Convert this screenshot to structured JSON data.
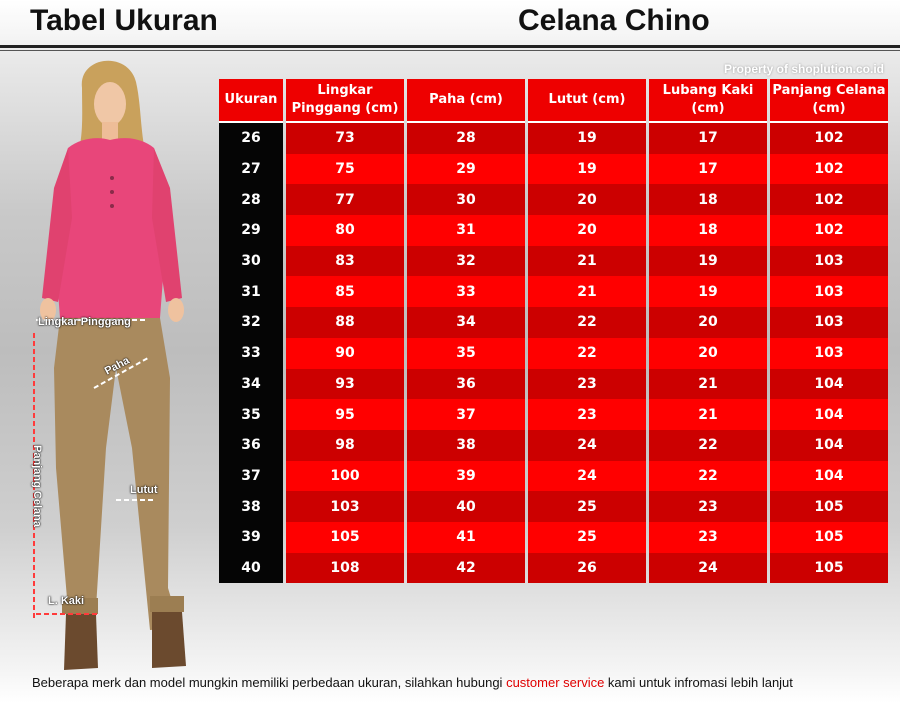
{
  "header": {
    "title_left": "Tabel Ukuran",
    "title_right": "Celana Chino",
    "property": "Property of shoplution.co.id"
  },
  "figure": {
    "labels": {
      "waist": "Lingkar Pinggang",
      "thigh": "Paha",
      "length": "Panjang Celana",
      "knee": "Lutut",
      "leg_opening": "L. Kaki"
    }
  },
  "table": {
    "headers": [
      "Ukuran",
      "Lingkar Pinggang (cm)",
      "Paha (cm)",
      "Lutut (cm)",
      "Lubang Kaki (cm)",
      "Panjang Celana (cm)"
    ],
    "rows": [
      [
        "26",
        "73",
        "28",
        "19",
        "17",
        "102"
      ],
      [
        "27",
        "75",
        "29",
        "19",
        "17",
        "102"
      ],
      [
        "28",
        "77",
        "30",
        "20",
        "18",
        "102"
      ],
      [
        "29",
        "80",
        "31",
        "20",
        "18",
        "102"
      ],
      [
        "30",
        "83",
        "32",
        "21",
        "19",
        "103"
      ],
      [
        "31",
        "85",
        "33",
        "21",
        "19",
        "103"
      ],
      [
        "32",
        "88",
        "34",
        "22",
        "20",
        "103"
      ],
      [
        "33",
        "90",
        "35",
        "22",
        "20",
        "103"
      ],
      [
        "34",
        "93",
        "36",
        "23",
        "21",
        "104"
      ],
      [
        "35",
        "95",
        "37",
        "23",
        "21",
        "104"
      ],
      [
        "36",
        "98",
        "38",
        "24",
        "22",
        "104"
      ],
      [
        "37",
        "100",
        "39",
        "24",
        "22",
        "104"
      ],
      [
        "38",
        "103",
        "40",
        "25",
        "23",
        "105"
      ],
      [
        "39",
        "105",
        "41",
        "25",
        "23",
        "105"
      ],
      [
        "40",
        "108",
        "42",
        "26",
        "24",
        "105"
      ]
    ]
  },
  "footer": {
    "before": "Beberapa merk dan model mungkin memiliki perbedaan ukuran, silahkan hubungi ",
    "highlight": "customer service",
    "after": " kami untuk infromasi lebih lanjut"
  },
  "colors": {
    "header_red": "#ee0000",
    "row_dark_red": "#cc0000",
    "row_bright_red": "#ff0000",
    "size_column": "#050505",
    "footer_highlight": "#e00000"
  }
}
